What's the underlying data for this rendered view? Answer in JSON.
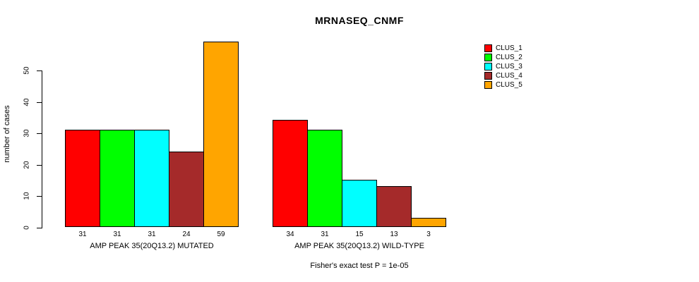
{
  "chart_data": {
    "type": "bar",
    "title": "MRNASEQ_CNMF",
    "ylabel": "number of cases",
    "xlabel": "",
    "footnote": "Fisher's exact test P = 1e-05",
    "categories": [
      "AMP PEAK 35(20Q13.2) MUTATED",
      "AMP PEAK 35(20Q13.2) WILD-TYPE"
    ],
    "series": [
      {
        "name": "CLUS_1",
        "color": "#ff0000",
        "values": [
          31,
          34
        ]
      },
      {
        "name": "CLUS_2",
        "color": "#00ff00",
        "values": [
          31,
          31
        ]
      },
      {
        "name": "CLUS_3",
        "color": "#00ffff",
        "values": [
          31,
          15
        ]
      },
      {
        "name": "CLUS_4",
        "color": "#a52a2a",
        "values": [
          24,
          13
        ]
      },
      {
        "name": "CLUS_5",
        "color": "#ffa500",
        "values": [
          59,
          3
        ]
      }
    ],
    "bar_value_labels_shown": true,
    "yticks": [
      0,
      10,
      20,
      30,
      40,
      50
    ],
    "ylim": [
      0,
      59
    ],
    "grid": false,
    "legend_position": "right"
  }
}
